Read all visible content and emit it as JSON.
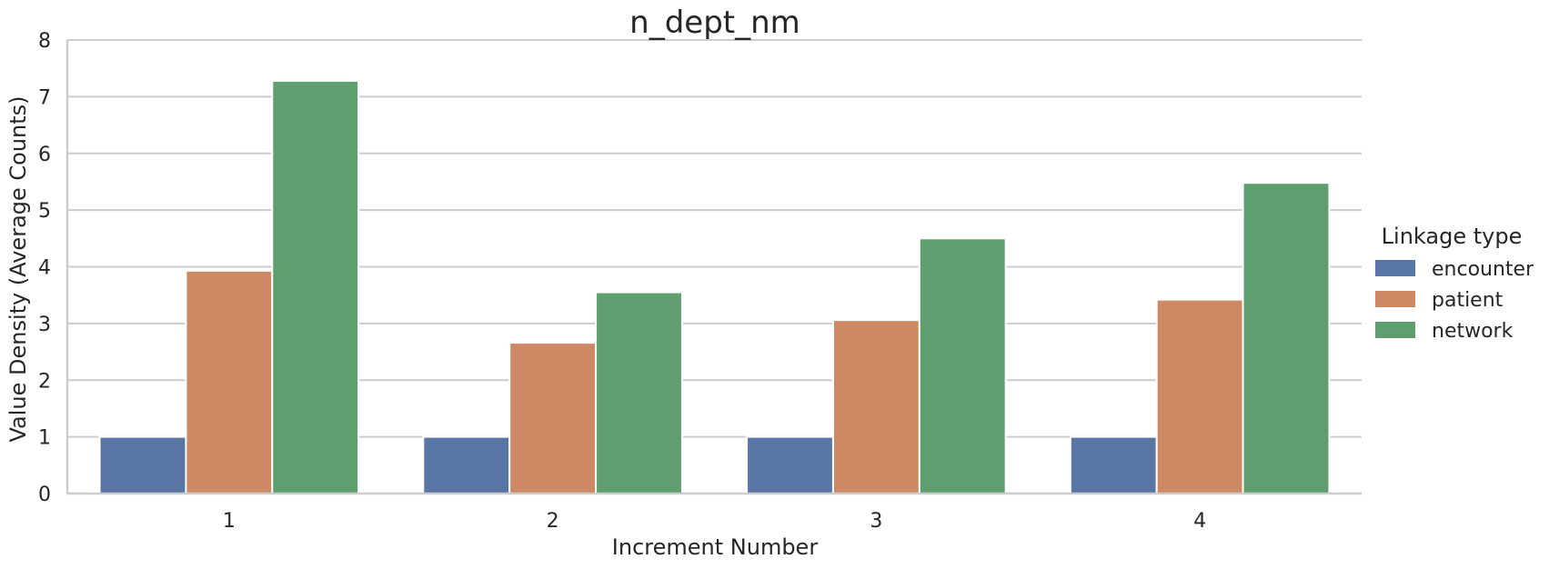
{
  "chart_data": {
    "type": "bar",
    "title": "n_dept_nm",
    "xlabel": "Increment Number",
    "ylabel": "Value Density (Average Counts)",
    "categories": [
      "1",
      "2",
      "3",
      "4"
    ],
    "ylim": [
      0,
      8
    ],
    "yticks": [
      0,
      1,
      2,
      3,
      4,
      5,
      6,
      7,
      8
    ],
    "grid": true,
    "legend": {
      "title": "Linkage type",
      "placement": "right"
    },
    "series": [
      {
        "name": "encounter",
        "color": "#5975a4",
        "values": [
          1.0,
          1.0,
          1.0,
          1.0
        ]
      },
      {
        "name": "patient",
        "color": "#cc8963",
        "values": [
          3.93,
          2.66,
          3.06,
          3.42
        ]
      },
      {
        "name": "network",
        "color": "#5f9e6e",
        "values": [
          7.28,
          3.55,
          4.5,
          5.48
        ]
      }
    ]
  }
}
